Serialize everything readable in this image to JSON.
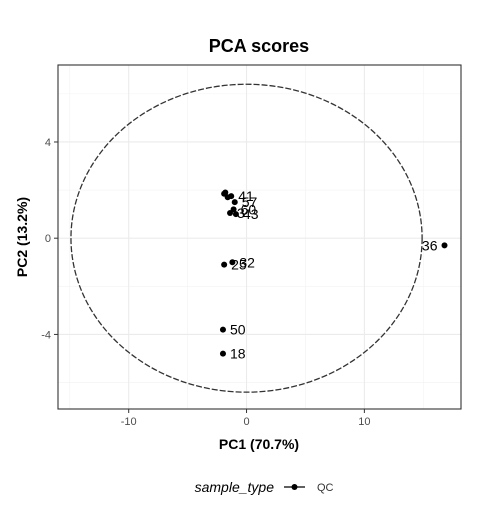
{
  "chart_data": {
    "type": "scatter",
    "title": "PCA scores",
    "xlabel": "PC1 (70.7%)",
    "ylabel": "PC2 (13.2%)",
    "xlim": [
      -16,
      18.2
    ],
    "ylim": [
      -7.1,
      7.2
    ],
    "xticks": [
      -10,
      0,
      10
    ],
    "yticks": [
      -4,
      0,
      4
    ],
    "xtick_labels": [
      "-10",
      "0",
      "10"
    ],
    "ytick_labels": [
      "-4",
      "0",
      "4"
    ],
    "grid": true,
    "legend": {
      "title": "sample_type",
      "placement": "bottom",
      "entries": [
        "QC"
      ]
    },
    "ellipse": {
      "center": [
        0,
        0
      ],
      "rx": 14.9,
      "ry": 6.4,
      "style": "dashed"
    },
    "series": [
      {
        "name": "QC",
        "color": "#000000",
        "points": [
          {
            "x": 16.8,
            "y": -0.3,
            "label": "36"
          },
          {
            "x": -1.9,
            "y": 1.85,
            "label": ""
          },
          {
            "x": -1.6,
            "y": 1.7,
            "label": ""
          },
          {
            "x": -1.3,
            "y": 1.75,
            "label": "41"
          },
          {
            "x": -1.8,
            "y": 1.9,
            "label": ""
          },
          {
            "x": -1.0,
            "y": 1.5,
            "label": "57"
          },
          {
            "x": -1.1,
            "y": 1.2,
            "label": "60"
          },
          {
            "x": -1.4,
            "y": 1.05,
            "label": "3"
          },
          {
            "x": -0.9,
            "y": 1.0,
            "label": "43"
          },
          {
            "x": -1.2,
            "y": -1.0,
            "label": "32"
          },
          {
            "x": -1.9,
            "y": -1.1,
            "label": "25"
          },
          {
            "x": -2.0,
            "y": -3.8,
            "label": "50"
          },
          {
            "x": -2.0,
            "y": -4.8,
            "label": "18"
          }
        ]
      }
    ]
  }
}
